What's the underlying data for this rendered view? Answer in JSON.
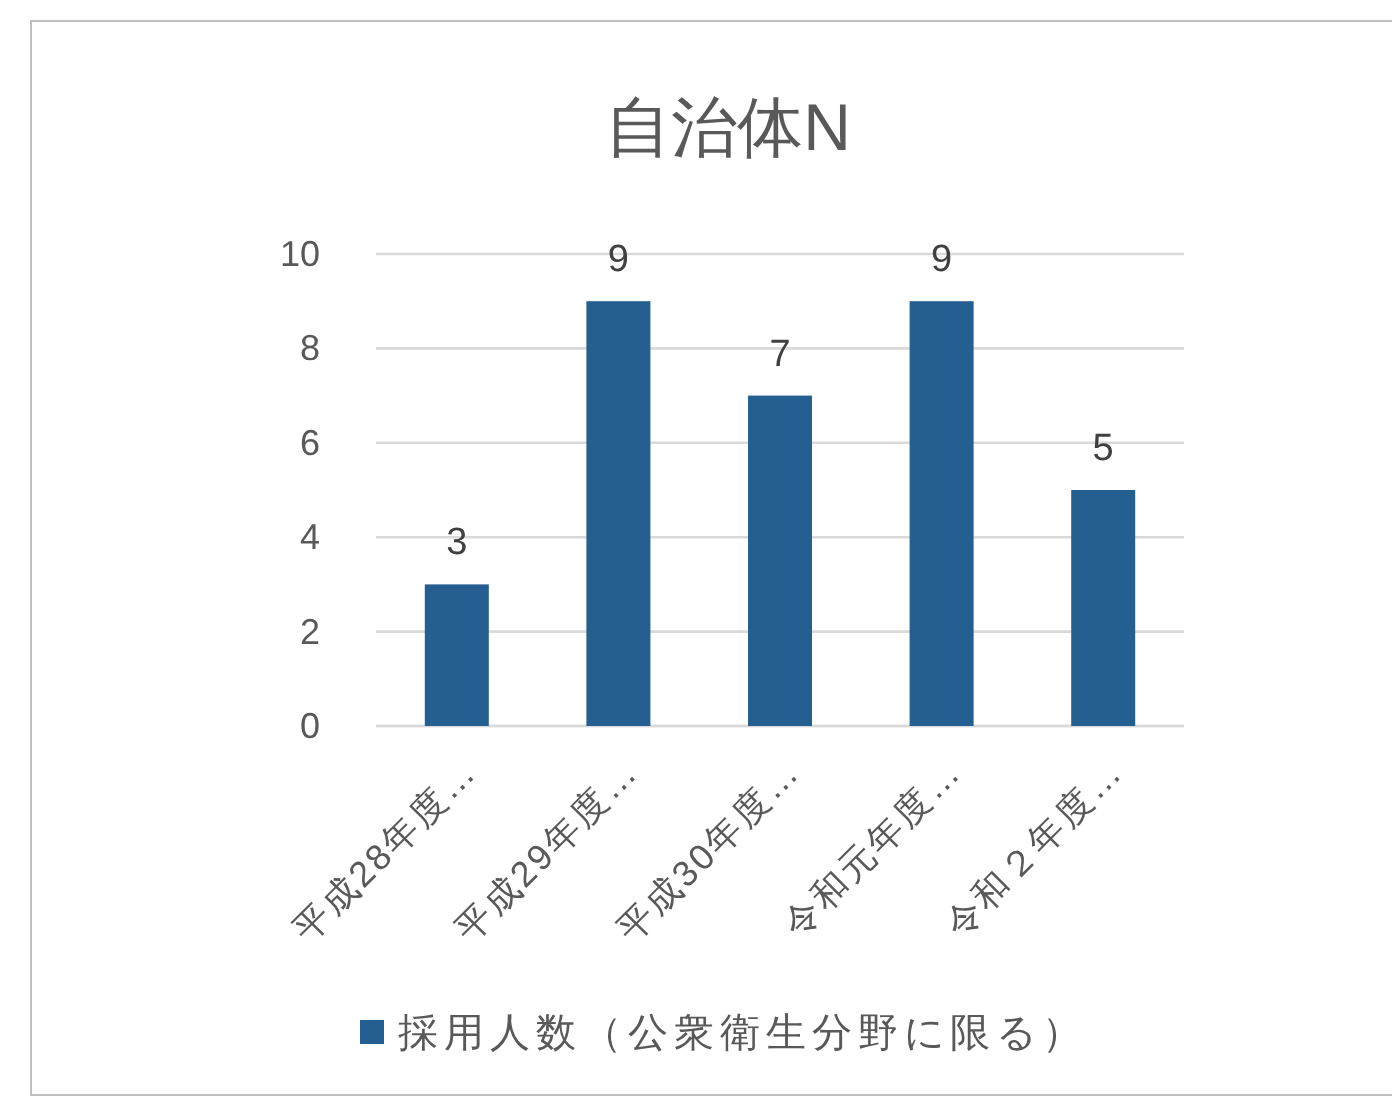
{
  "chart_data": {
    "type": "bar",
    "title": "自治体N",
    "categories": [
      "平成28年度…",
      "平成29年度…",
      "平成30年度…",
      "令和元年度…",
      "令和２年度…"
    ],
    "series": [
      {
        "name": "採用人数（公衆衛生分野に限る）",
        "color": "#255e91",
        "values": [
          3,
          9,
          7,
          9,
          5
        ]
      }
    ],
    "ylim": [
      0,
      10
    ],
    "yticks": [
      0,
      2,
      4,
      6,
      8,
      10
    ],
    "grid": "y",
    "data_labels": true,
    "legend": "bottom"
  }
}
